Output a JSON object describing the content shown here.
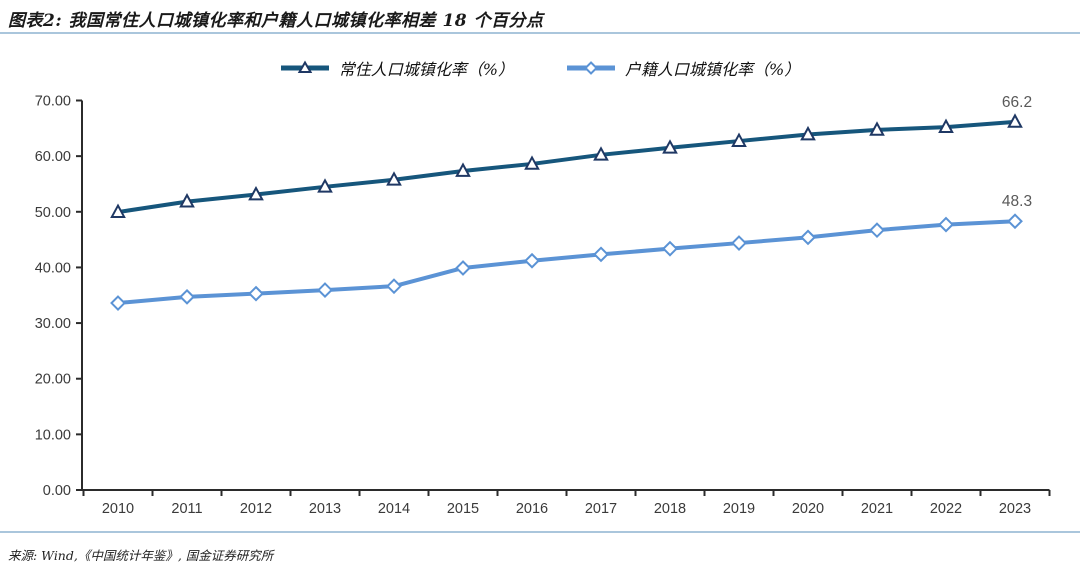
{
  "title": "图表2: 我国常住人口城镇化率和户籍人口城镇化率相差 18 个百分点",
  "footer": {
    "source": "来源: Wind,《中国统计年鉴》, 国金证券研究所"
  },
  "colors": {
    "rule": "#aac6dc",
    "axis": "#2b2b2b",
    "tick_label": "#3a3a3a",
    "data_label": "#595959",
    "series_resident": "#16567c",
    "series_resident_marker": "#1f3864",
    "series_hukou": "#5b93d5"
  },
  "chart_data": {
    "type": "line",
    "categories": [
      "2010",
      "2011",
      "2012",
      "2013",
      "2014",
      "2015",
      "2016",
      "2017",
      "2018",
      "2019",
      "2020",
      "2021",
      "2022",
      "2023"
    ],
    "series": [
      {
        "name": "常住人口城镇化率（%）",
        "marker": "triangle",
        "color": "#16567c",
        "marker_color": "#1f3864",
        "values": [
          49.95,
          51.83,
          53.1,
          54.49,
          55.75,
          57.33,
          58.6,
          60.24,
          61.5,
          62.71,
          63.89,
          64.72,
          65.22,
          66.16
        ],
        "end_label": "66.2"
      },
      {
        "name": "户籍人口城镇化率（%）",
        "marker": "diamond",
        "color": "#5b93d5",
        "marker_color": "#5b93d5",
        "values": [
          33.6,
          34.71,
          35.29,
          35.93,
          36.63,
          39.9,
          41.2,
          42.35,
          43.37,
          44.38,
          45.4,
          46.7,
          47.7,
          48.3
        ],
        "end_label": "48.3"
      }
    ],
    "ylim": [
      0,
      70
    ],
    "y_ticks": [
      "0.00",
      "10.00",
      "20.00",
      "30.00",
      "40.00",
      "50.00",
      "60.00",
      "70.00"
    ],
    "grid": false,
    "legend_position": "top-center"
  }
}
